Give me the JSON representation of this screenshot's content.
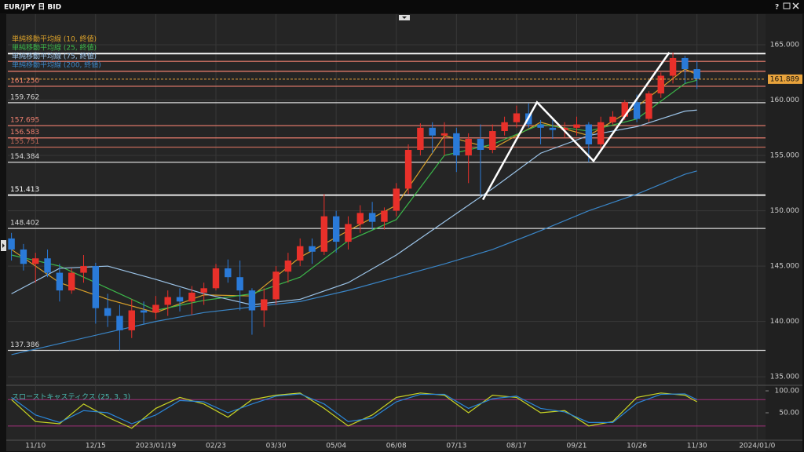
{
  "window": {
    "title": "EUR/JPY 日 BID",
    "help": "?"
  },
  "chart_data": {
    "type": "candlestick",
    "xlim": [
      -0.3,
      62.7
    ],
    "xticks": [
      {
        "value": 2,
        "label": "11/10"
      },
      {
        "value": 7,
        "label": "12/15"
      },
      {
        "value": 12,
        "label": "2023/01/19"
      },
      {
        "value": 17,
        "label": "02/23"
      },
      {
        "value": 22,
        "label": "03/30"
      },
      {
        "value": 27,
        "label": "05/04"
      },
      {
        "value": 32,
        "label": "06/08"
      },
      {
        "value": 37,
        "label": "07/13"
      },
      {
        "value": 42,
        "label": "08/17"
      },
      {
        "value": 47,
        "label": "09/21"
      },
      {
        "value": 52,
        "label": "10/26"
      },
      {
        "value": 57,
        "label": "11/30"
      },
      {
        "value": 62,
        "label": "2024/01/0"
      }
    ],
    "ylim": [
      134.3,
      167.2
    ],
    "yticks": [
      {
        "value": 135,
        "label": "135.000"
      },
      {
        "value": 140,
        "label": "140.000"
      },
      {
        "value": 145,
        "label": "145.000"
      },
      {
        "value": 150,
        "label": "150.000"
      },
      {
        "value": 155,
        "label": "155.000"
      },
      {
        "value": 160,
        "label": "160.000"
      },
      {
        "value": 165,
        "label": "165.000"
      }
    ],
    "grid": true,
    "up_color": "#e8302a",
    "down_color": "#2a7ad8",
    "open": [
      147.5,
      146.5,
      145.2,
      145.7,
      144.4,
      142.8,
      144.4,
      145.0,
      141.2,
      140.5,
      139.2,
      141.0,
      140.8,
      141.5,
      142.2,
      141.8,
      142.6,
      143.0,
      144.8,
      144.0,
      142.8,
      141.0,
      142.0,
      144.5,
      145.5,
      146.8,
      146.3,
      149.5,
      147.2,
      148.8,
      149.8,
      149.0,
      150.0,
      152.0,
      155.5,
      157.5,
      156.8,
      157.0,
      155.0,
      156.5,
      155.5,
      157.2,
      158.0,
      158.8,
      157.8,
      157.5,
      157.3,
      157.5,
      157.8,
      156.0,
      158.0,
      158.5,
      159.8,
      158.3,
      160.6,
      162.2,
      163.8,
      162.8
    ],
    "high": [
      148.0,
      147.0,
      146.2,
      146.5,
      145.2,
      144.8,
      146.0,
      145.3,
      142.5,
      141.5,
      142.0,
      141.8,
      142.3,
      142.8,
      143.0,
      143.2,
      143.5,
      145.2,
      145.6,
      145.5,
      143.0,
      143.0,
      145.0,
      146.2,
      147.5,
      147.5,
      151.5,
      150.0,
      149.5,
      150.5,
      150.8,
      150.3,
      152.5,
      156.0,
      157.9,
      158.0,
      158.0,
      157.5,
      157.0,
      157.8,
      157.8,
      158.5,
      159.5,
      159.7,
      158.2,
      158.2,
      158.0,
      158.5,
      158.0,
      158.5,
      159.0,
      160.0,
      160.5,
      160.8,
      162.5,
      164.3,
      164.0,
      163.5
    ],
    "low": [
      145.5,
      144.6,
      143.5,
      144.0,
      141.8,
      142.5,
      143.5,
      139.8,
      139.5,
      137.4,
      138.5,
      139.8,
      140.2,
      140.5,
      140.9,
      140.6,
      141.5,
      142.8,
      143.5,
      141.0,
      138.8,
      139.5,
      141.5,
      143.5,
      145.0,
      145.2,
      146.0,
      146.2,
      146.5,
      148.0,
      148.3,
      148.3,
      149.5,
      151.5,
      155.0,
      155.2,
      155.0,
      153.5,
      152.5,
      151.4,
      155.2,
      156.8,
      157.5,
      157.5,
      156.0,
      156.5,
      156.6,
      156.8,
      154.4,
      155.6,
      157.8,
      158.2,
      158.0,
      158.0,
      160.2,
      161.5,
      161.5,
      161.0
    ],
    "close": [
      146.5,
      145.2,
      145.7,
      144.4,
      142.8,
      144.4,
      145.0,
      141.2,
      140.5,
      139.2,
      141.0,
      140.8,
      141.5,
      142.2,
      141.8,
      142.6,
      143.0,
      144.8,
      144.0,
      142.8,
      141.0,
      142.0,
      144.5,
      145.5,
      146.8,
      146.3,
      149.5,
      147.2,
      148.8,
      149.8,
      149.0,
      150.0,
      152.0,
      155.5,
      157.5,
      156.8,
      157.0,
      155.0,
      156.5,
      155.5,
      157.2,
      158.0,
      158.8,
      157.8,
      157.5,
      157.3,
      157.5,
      157.8,
      156.0,
      158.0,
      158.5,
      159.8,
      158.3,
      160.6,
      162.2,
      163.8,
      162.8,
      161.9
    ],
    "moving_averages": [
      {
        "name": "単純移動平均線 (10, 終値)",
        "color": "#d9a02a",
        "x": [
          0,
          4,
          8,
          12,
          16,
          20,
          24,
          28,
          32,
          36,
          40,
          44,
          48,
          52,
          56,
          57
        ],
        "values": [
          146.5,
          143.5,
          142.0,
          140.8,
          142.4,
          142.3,
          145.8,
          148.2,
          150.5,
          156.8,
          155.6,
          158.0,
          156.8,
          159.4,
          162.8,
          162.3
        ]
      },
      {
        "name": "単純移動平均線 (25, 終値)",
        "color": "#3cb84a",
        "x": [
          0,
          4,
          8,
          12,
          16,
          20,
          24,
          28,
          32,
          36,
          40,
          44,
          48,
          52,
          56,
          57
        ],
        "values": [
          146.0,
          145.0,
          143.0,
          141.0,
          141.9,
          142.5,
          144.0,
          147.3,
          149.2,
          155.0,
          156.0,
          157.8,
          157.2,
          158.3,
          161.5,
          161.8
        ]
      },
      {
        "name": "単純移動平均線 (75, 終値)",
        "color": "#9cc4e8",
        "x": [
          0,
          4,
          8,
          12,
          16,
          20,
          24,
          28,
          32,
          36,
          40,
          44,
          48,
          52,
          56,
          57
        ],
        "values": [
          142.5,
          144.8,
          145.0,
          143.8,
          142.5,
          141.5,
          142.0,
          143.5,
          146.0,
          149.0,
          152.0,
          155.2,
          156.8,
          157.6,
          159.0,
          159.1
        ]
      },
      {
        "name": "単純移動平均線 (200, 終値)",
        "color": "#3a86c8",
        "x": [
          0,
          4,
          8,
          12,
          16,
          20,
          24,
          28,
          32,
          36,
          40,
          44,
          48,
          52,
          56,
          57
        ],
        "values": [
          137.0,
          138.0,
          139.0,
          140.0,
          140.8,
          141.3,
          141.8,
          142.8,
          144.0,
          145.2,
          146.5,
          148.2,
          150.0,
          151.5,
          153.3,
          153.6
        ]
      }
    ],
    "levels": [
      {
        "value": 164.2,
        "color": "#ffffff"
      },
      {
        "value": 163.5,
        "color": "#f08070"
      },
      {
        "value": 162.6,
        "color": "#f08070"
      },
      {
        "value": 161.25,
        "label": "161.250",
        "color": "#f08070"
      },
      {
        "value": 159.762,
        "label": "159.762",
        "color": "#d8d8d8"
      },
      {
        "value": 157.695,
        "label": "157.695",
        "color": "#f08070"
      },
      {
        "value": 156.583,
        "label": "156.583",
        "color": "#f08070"
      },
      {
        "value": 155.751,
        "label": "155.751",
        "color": "#c06858"
      },
      {
        "value": 154.384,
        "label": "154.384",
        "color": "#d8d8d8"
      },
      {
        "value": 151.413,
        "label": "151.413",
        "color": "#ffffff"
      },
      {
        "value": 148.402,
        "label": "148.402",
        "color": "#d8d8d8"
      },
      {
        "value": 137.386,
        "label": "137.386",
        "color": "#d8d8d8"
      }
    ],
    "last_price": {
      "value": 161.889,
      "label": "161.889",
      "color": "#e8a33c"
    },
    "drawings": [
      {
        "color": "#ffffff",
        "x": [
          39.2,
          43.7,
          48.4,
          54.7
        ],
        "values": [
          151.0,
          159.8,
          154.5,
          164.3
        ]
      }
    ],
    "stochastic": {
      "title": "スローストキャスティクス (25, 3, 3)",
      "ylim": [
        -10.7,
        109
      ],
      "yticks": [
        {
          "value": 100,
          "label": "100.00"
        },
        {
          "value": 50,
          "label": "50.00"
        }
      ],
      "levels": [
        20,
        80
      ],
      "level_color": "#a0307a",
      "x": [
        0,
        2,
        4,
        6,
        8,
        10,
        12,
        14,
        16,
        18,
        20,
        22,
        24,
        26,
        28,
        30,
        32,
        34,
        36,
        38,
        40,
        42,
        44,
        46,
        48,
        50,
        52,
        54,
        56,
        57
      ],
      "series": [
        {
          "color": "#c8d424",
          "values": [
            80,
            30,
            25,
            70,
            40,
            15,
            60,
            85,
            70,
            40,
            80,
            90,
            95,
            60,
            20,
            45,
            85,
            95,
            90,
            50,
            90,
            85,
            50,
            55,
            20,
            30,
            85,
            95,
            90,
            75
          ]
        },
        {
          "color": "#2a86d8",
          "values": [
            85,
            45,
            28,
            55,
            50,
            25,
            45,
            78,
            75,
            50,
            70,
            88,
            93,
            70,
            30,
            38,
            75,
            92,
            92,
            60,
            82,
            88,
            60,
            52,
            28,
            28,
            72,
            92,
            93,
            80
          ]
        }
      ]
    }
  }
}
